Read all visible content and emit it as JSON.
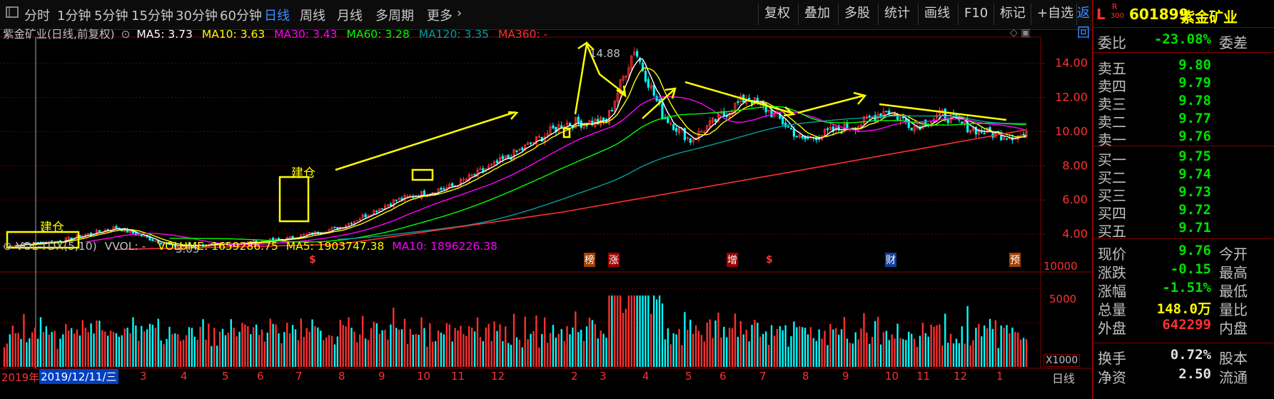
{
  "toolbar": {
    "left_items": [
      "分时",
      "1分钟",
      "5分钟",
      "15分钟",
      "30分钟",
      "60分钟",
      "日线",
      "周线",
      "月线",
      "多周期",
      "更多"
    ],
    "active": "日线",
    "right_items": [
      "复权",
      "叠加",
      "多股",
      "统计",
      "画线",
      "F10",
      "标记",
      "+自选",
      "返回"
    ]
  },
  "chart_header": {
    "title": "紫金矿业(日线,前复权)",
    "ma5": "MA5: 3.73",
    "ma10": "MA10: 3.63",
    "ma30": "MA30: 3.43",
    "ma60": "MA60: 3.28",
    "ma120": "MA120: 3.35",
    "ma360": "MA360: -"
  },
  "chart_annotations": {
    "high": "14.88",
    "low": "3.05",
    "build1": "建仓",
    "build2": "建仓"
  },
  "event_markers": [
    "$",
    "榜",
    "涨",
    "增",
    "$",
    "财",
    "预"
  ],
  "volume_header": {
    "name": "VOL-TDX(5,10)",
    "vvol": "VVOL: -",
    "volume": "VOLUME: 1659286.75",
    "ma5": "MA5: 1903747.38",
    "ma10": "MA10: 1896226.38"
  },
  "volume_axis": {
    "unit": "X1000",
    "ticks": [
      "10000",
      "5000"
    ]
  },
  "date_axis": {
    "first": "2019年",
    "cursor": "2019/12/11/三",
    "months": [
      "3",
      "4",
      "5",
      "6",
      "7",
      "8",
      "9",
      "10",
      "11",
      "12",
      "2",
      "3",
      "4",
      "5",
      "6",
      "7",
      "8",
      "9",
      "10",
      "11",
      "12",
      "1"
    ],
    "period": "日线"
  },
  "colors": {
    "ma5": "#ffffff",
    "ma10": "#ffff00",
    "ma30": "#ff00ff",
    "ma60": "#00ff00",
    "ma120": "#00a0a0",
    "ma360": "#ff3030",
    "up": "#ff3030",
    "down": "#00ffff"
  },
  "chart_data": {
    "type": "candlestick",
    "title": "紫金矿业(日线,前复权)",
    "y_ticks": [
      "14.00",
      "12.00",
      "10.00",
      "8.00",
      "6.00",
      "4.00"
    ],
    "ylim": [
      3.0,
      15.2
    ],
    "price_path": [
      [
        0,
        3.3
      ],
      [
        20,
        3.6
      ],
      [
        40,
        4.4
      ],
      [
        60,
        3.3
      ],
      [
        80,
        3.4
      ],
      [
        100,
        3.7
      ],
      [
        120,
        4.4
      ],
      [
        140,
        6.0
      ],
      [
        160,
        6.8
      ],
      [
        180,
        8.5
      ],
      [
        200,
        10.5
      ],
      [
        215,
        10.6
      ],
      [
        225,
        14.88
      ],
      [
        235,
        11.0
      ],
      [
        245,
        9.5
      ],
      [
        255,
        10.8
      ],
      [
        265,
        12.0
      ],
      [
        275,
        11.0
      ],
      [
        285,
        9.5
      ],
      [
        295,
        10.0
      ],
      [
        305,
        10.4
      ],
      [
        315,
        11.3
      ],
      [
        325,
        10.3
      ],
      [
        335,
        11.0
      ],
      [
        345,
        10.2
      ],
      [
        355,
        9.8
      ],
      [
        365,
        9.76
      ]
    ],
    "ma360_path": [
      [
        40,
        3.1
      ],
      [
        120,
        3.4
      ],
      [
        200,
        5.3
      ],
      [
        280,
        7.6
      ],
      [
        365,
        10.1
      ]
    ],
    "high": 14.88,
    "low": 3.05,
    "volume_ticks": [
      "10000",
      "5000"
    ],
    "volume_unit": "X1000"
  },
  "quote": {
    "marker": "L",
    "rank_top": "R",
    "rank_bottom": "300",
    "code": "601899",
    "name": "紫金矿业",
    "weibi_label": "委比",
    "weibi_value": "-23.08%",
    "weicha_label": "委差",
    "asks": [
      {
        "label": "卖五",
        "price": "9.80"
      },
      {
        "label": "卖四",
        "price": "9.79"
      },
      {
        "label": "卖三",
        "price": "9.78"
      },
      {
        "label": "卖二",
        "price": "9.77"
      },
      {
        "label": "卖一",
        "price": "9.76"
      }
    ],
    "bids": [
      {
        "label": "买一",
        "price": "9.75"
      },
      {
        "label": "买二",
        "price": "9.74"
      },
      {
        "label": "买三",
        "price": "9.73"
      },
      {
        "label": "买四",
        "price": "9.72"
      },
      {
        "label": "买五",
        "price": "9.71"
      }
    ],
    "stats": [
      {
        "label": "现价",
        "value": "9.76",
        "label2": "今开",
        "color": "#00e000"
      },
      {
        "label": "涨跌",
        "value": "-0.15",
        "label2": "最高",
        "color": "#00e000"
      },
      {
        "label": "涨幅",
        "value": "-1.51%",
        "label2": "最低",
        "color": "#00e000"
      },
      {
        "label": "总量",
        "value": "148.0万",
        "label2": "量比",
        "color": "#ffff00"
      },
      {
        "label": "外盘",
        "value": "642299",
        "label2": "内盘",
        "color": "#ff3030"
      }
    ],
    "turnover_label": "换手",
    "turnover_value": "0.72%",
    "turnover_label2": "股本",
    "bottom_label": "净资",
    "bottom_value": "2.50",
    "bottom_label2": "流通"
  }
}
